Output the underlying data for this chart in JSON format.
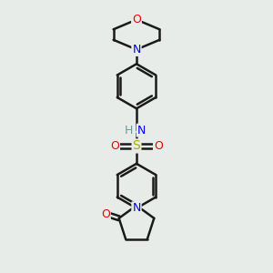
{
  "bg_color": "#e8ece8",
  "line_color": "#1a1a1a",
  "bond_width": 1.8,
  "atom_colors": {
    "N": "#0000ee",
    "O": "#ee0000",
    "S": "#aaaa00",
    "H": "#6a9a9a"
  },
  "font_size": 9,
  "figsize": [
    3.0,
    3.0
  ],
  "dpi": 100
}
